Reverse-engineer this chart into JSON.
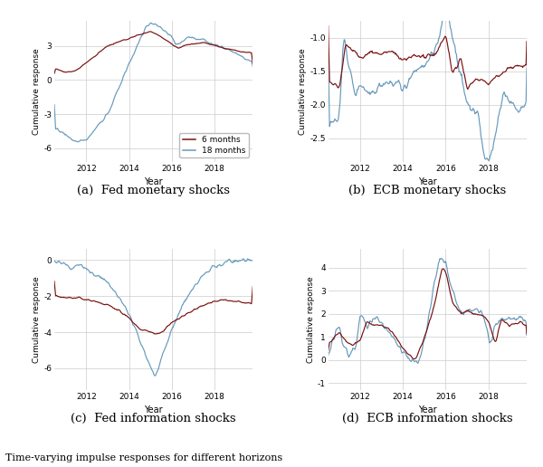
{
  "fig_width": 6.0,
  "fig_height": 5.16,
  "dpi": 100,
  "background_color": "#ffffff",
  "grid_color": "#cccccc",
  "line_6m_color": "#7a1010",
  "line_18m_color": "#6699bb",
  "line_width": 0.85,
  "xlabel": "Year",
  "ylabel": "Cumulative response",
  "legend_labels": [
    "6 months",
    "18 months"
  ],
  "subplot_titles": [
    "(a)  Fed monetary shocks",
    "(b)  ECB monetary shocks",
    "(c)  Fed information shocks",
    "(d)  ECB information shocks"
  ],
  "caption": "Time-varying impulse responses for different horizons",
  "xticks": [
    2012,
    2014,
    2016,
    2018
  ],
  "panels": {
    "a": {
      "ylim": [
        -7.2,
        5.2
      ],
      "yticks": [
        -6,
        -3,
        0,
        3
      ],
      "xlim": [
        2010.5,
        2019.8
      ]
    },
    "b": {
      "ylim": [
        -2.85,
        -0.75
      ],
      "yticks": [
        -2.5,
        -2.0,
        -1.5,
        -1.0
      ],
      "xlim": [
        2010.5,
        2019.8
      ]
    },
    "c": {
      "ylim": [
        -7.2,
        0.6
      ],
      "yticks": [
        -6,
        -4,
        -2,
        0
      ],
      "xlim": [
        2010.5,
        2019.8
      ]
    },
    "d": {
      "ylim": [
        -1.3,
        4.8
      ],
      "yticks": [
        -1,
        0,
        1,
        2,
        3,
        4
      ],
      "xlim": [
        2010.5,
        2019.8
      ]
    }
  }
}
